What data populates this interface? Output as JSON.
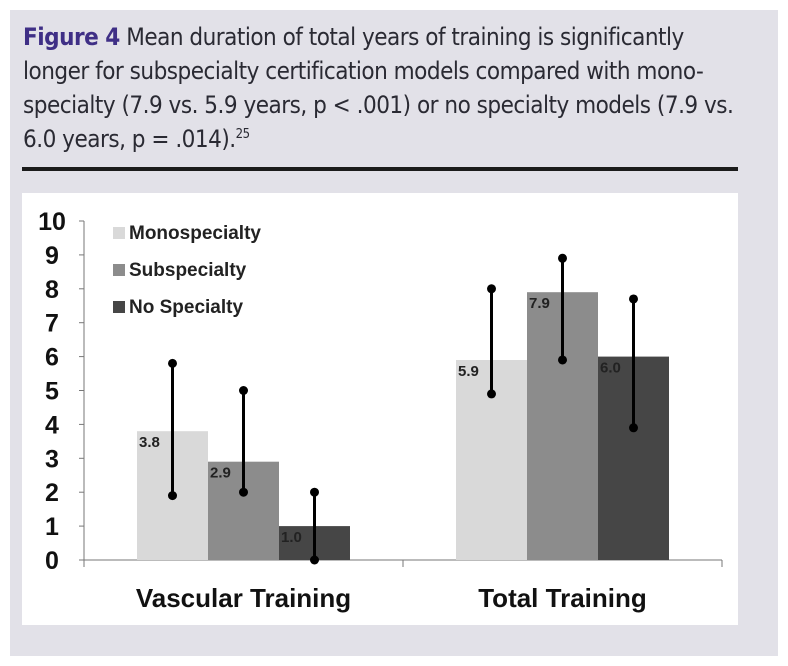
{
  "figure": {
    "label": "Figure 4",
    "caption": "Mean duration of total years of training is significantly longer for subspecialty certification models compared with mono-specialty (7.9 vs. 5.9 years, p < .001) or no specialty models (7.9 vs. 6.0 years, p = .014).",
    "reference": "25"
  },
  "chart_data": {
    "type": "bar",
    "title": "",
    "xlabel": "",
    "ylabel": "",
    "ylim": [
      0,
      10
    ],
    "yticks": [
      0,
      1,
      2,
      3,
      4,
      5,
      6,
      7,
      8,
      9,
      10
    ],
    "categories": [
      "Vascular Training",
      "Total Training"
    ],
    "series": [
      {
        "name": "Monospecialty",
        "color": "#d9d9d9",
        "values": [
          3.8,
          5.9
        ],
        "labels": [
          "3.8",
          "5.9"
        ],
        "error_bars": [
          [
            1.9,
            5.8
          ],
          [
            4.9,
            8.0
          ]
        ]
      },
      {
        "name": "Subspecialty",
        "color": "#8c8c8c",
        "values": [
          2.9,
          7.9
        ],
        "labels": [
          "2.9",
          "7.9"
        ],
        "error_bars": [
          [
            2.0,
            5.0
          ],
          [
            5.9,
            8.9
          ]
        ]
      },
      {
        "name": "No Specialty",
        "color": "#464646",
        "values": [
          1.0,
          6.0
        ],
        "labels": [
          "1.0",
          "6.0"
        ],
        "error_bars": [
          [
            0.0,
            2.0
          ],
          [
            3.9,
            7.7
          ]
        ]
      }
    ],
    "legend": "top-left",
    "grid": false
  }
}
